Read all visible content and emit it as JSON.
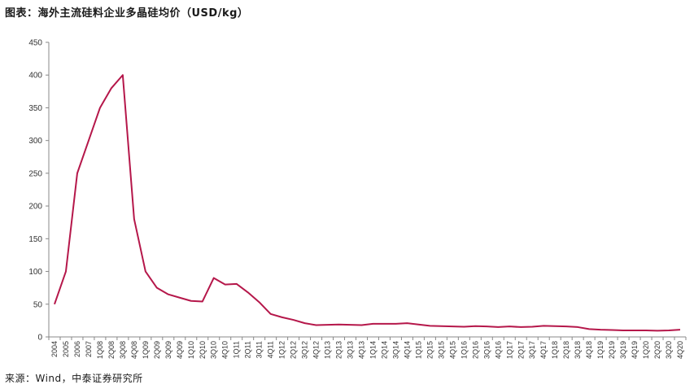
{
  "title": "图表：海外主流硅料企业多晶硅均价（USD/kg）",
  "source": "来源：Wind，中泰证券研究所",
  "chart_data": {
    "type": "line",
    "title": "图表：海外主流硅料企业多晶硅均价（USD/kg）",
    "xlabel": "",
    "ylabel": "",
    "ylim": [
      0,
      450
    ],
    "yticks": [
      0,
      50,
      100,
      150,
      200,
      250,
      300,
      350,
      400,
      450
    ],
    "grid": false,
    "legend": "none",
    "line_color": "#B5174A",
    "categories": [
      "2004",
      "2005",
      "2006",
      "2007",
      "1Q08",
      "2Q08",
      "3Q08",
      "4Q08",
      "1Q09",
      "2Q09",
      "3Q09",
      "4Q09",
      "1Q10",
      "2Q10",
      "3Q10",
      "4Q10",
      "1Q11",
      "2Q11",
      "3Q11",
      "4Q11",
      "1Q12",
      "2Q12",
      "3Q12",
      "4Q12",
      "1Q13",
      "2Q13",
      "3Q13",
      "4Q13",
      "1Q14",
      "2Q14",
      "3Q14",
      "4Q14",
      "1Q15",
      "2Q15",
      "3Q15",
      "4Q15",
      "1Q16",
      "2Q16",
      "3Q16",
      "4Q16",
      "1Q17",
      "2Q17",
      "3Q17",
      "4Q17",
      "1Q18",
      "2Q18",
      "3Q18",
      "4Q18",
      "1Q19",
      "2Q19",
      "3Q19",
      "4Q19",
      "1Q20",
      "2Q20",
      "3Q20",
      "4Q20"
    ],
    "series": [
      {
        "values": [
          50,
          100,
          250,
          300,
          350,
          380,
          400,
          180,
          100,
          75,
          65,
          60,
          55,
          54,
          90,
          80,
          81,
          68,
          53,
          35,
          30,
          26,
          21,
          18,
          18.5,
          19,
          18.5,
          18,
          20,
          20,
          20,
          21,
          19,
          17,
          16.5,
          16,
          15.5,
          16.5,
          16,
          15,
          16,
          15,
          15.5,
          17,
          16.5,
          16,
          15,
          12,
          11,
          10.5,
          10,
          10,
          10,
          9.5,
          10,
          11
        ]
      }
    ]
  }
}
